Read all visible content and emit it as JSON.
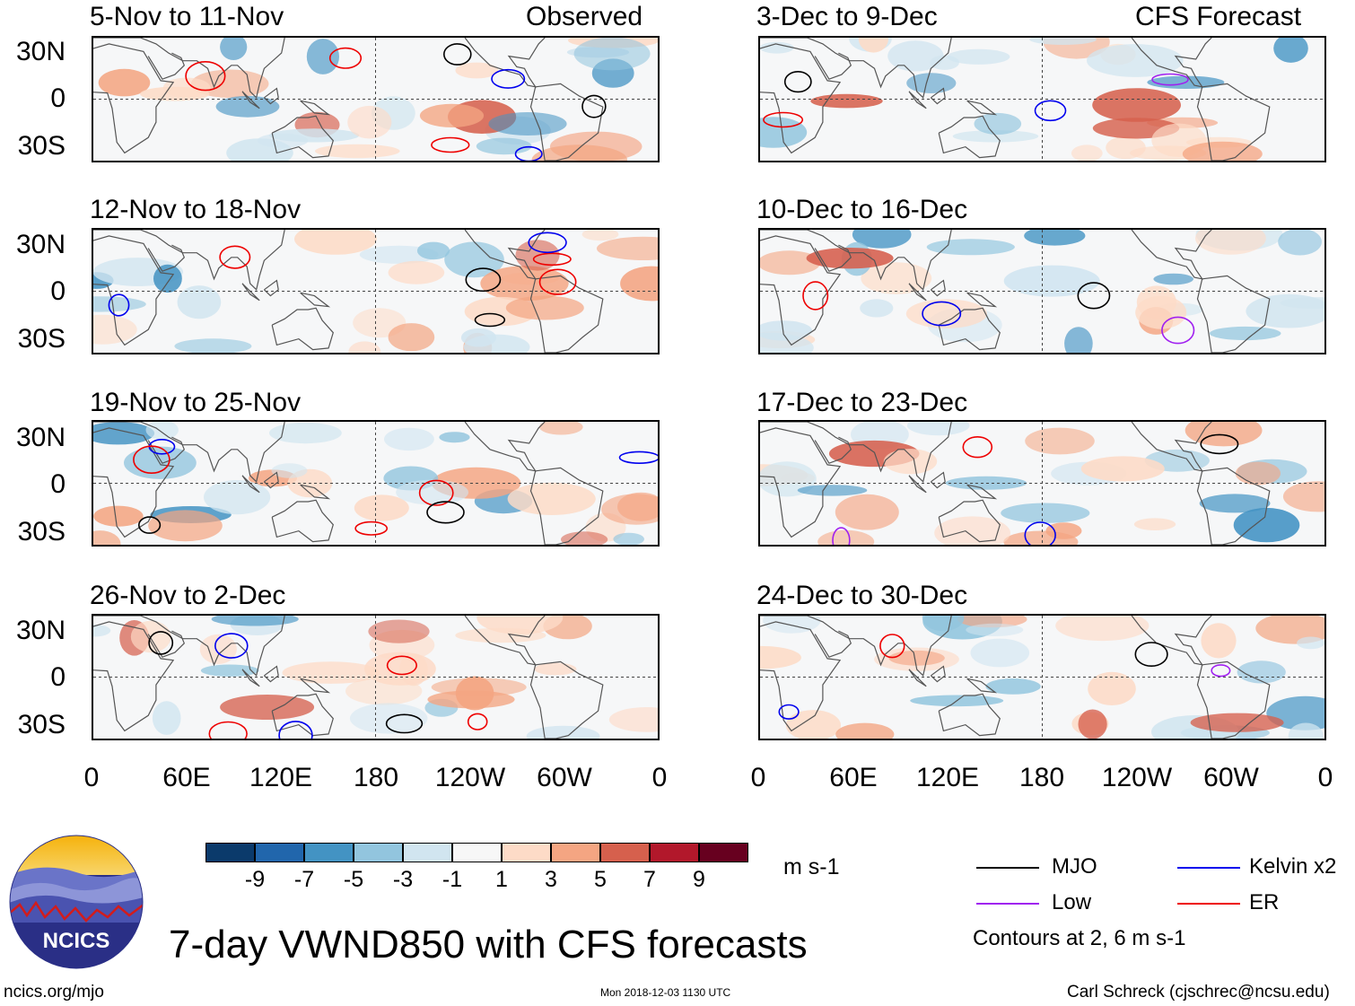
{
  "panels_left_header": "Observed",
  "panels_right_header": "CFS Forecast",
  "panels": [
    {
      "title": "5-Nov to 11-Nov"
    },
    {
      "title": "12-Nov to 18-Nov"
    },
    {
      "title": "19-Nov to 25-Nov"
    },
    {
      "title": "26-Nov to 2-Dec"
    },
    {
      "title": "3-Dec to 9-Dec"
    },
    {
      "title": "10-Dec to 16-Dec"
    },
    {
      "title": "17-Dec to 23-Dec"
    },
    {
      "title": "24-Dec to 30-Dec"
    }
  ],
  "lat_labels": [
    "30N",
    "0",
    "30S"
  ],
  "lon_labels": [
    "0",
    "60E",
    "120E",
    "180",
    "120W",
    "60W",
    "0"
  ],
  "colorbar": {
    "colors": [
      "#0b3a6b",
      "#2166ac",
      "#4393c3",
      "#92c5de",
      "#d1e5f0",
      "#f7f7f7",
      "#fddbc7",
      "#f4a582",
      "#d6604d",
      "#b2182b",
      "#67001f"
    ],
    "labels": [
      "-9",
      "-7",
      "-5",
      "-3",
      "-1",
      "1",
      "3",
      "5",
      "7",
      "9"
    ],
    "units": "m s-1"
  },
  "legend": {
    "items": [
      {
        "label": "MJO",
        "color": "#000000"
      },
      {
        "label": "Kelvin x2",
        "color": "#0000ee"
      },
      {
        "label": "Low",
        "color": "#a020f0"
      },
      {
        "label": "ER",
        "color": "#ee0000"
      }
    ],
    "note": "Contours at 2, 6 m s-1"
  },
  "logo_text": "NCICS",
  "main_title": "7-day VWND850 with CFS forecasts",
  "footer": {
    "left": "ncics.org/mjo",
    "center": "Mon 2018-12-03 1130 UTC",
    "right": "Carl Schreck (cjschrec@ncsu.edu)"
  }
}
